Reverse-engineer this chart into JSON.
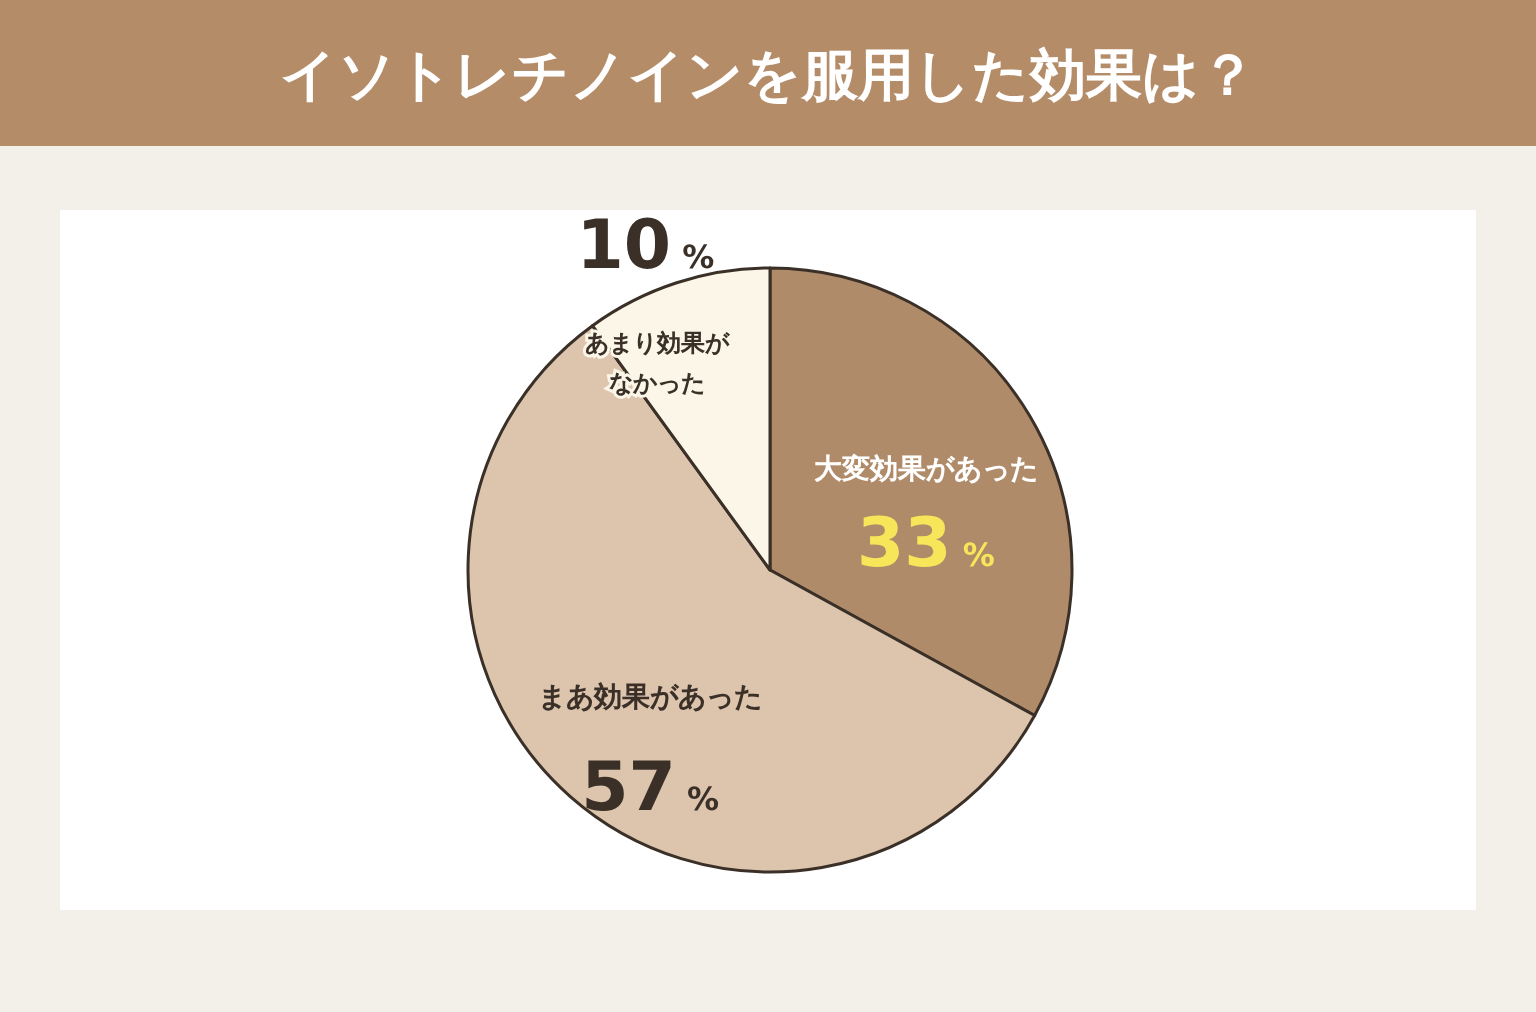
{
  "chart_data": {
    "type": "pie",
    "title": "イソトレチノインを服用した効果は？",
    "categories": [
      "大変効果があった",
      "まあ効果があった",
      "あまり効果がなかった"
    ],
    "values": [
      33,
      57,
      10
    ],
    "colors": [
      "#b08b69",
      "#dcc4ad",
      "#fcf6e9"
    ],
    "value_labels": [
      "33 %",
      "57 %",
      "10 %"
    ]
  }
}
